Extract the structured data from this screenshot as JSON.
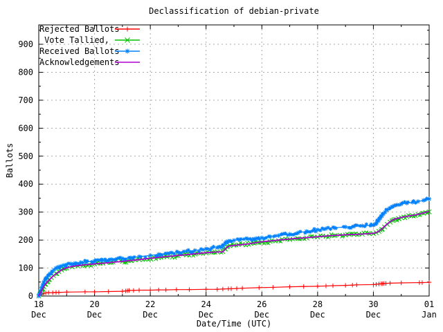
{
  "chart_data": {
    "type": "line",
    "title": "Declassification of debian-private",
    "xlabel": "Date/Time (UTC)",
    "ylabel": "Ballots",
    "grid": true,
    "legend_position": "top-left",
    "axes": {
      "x_days_start": 18,
      "x_days_end": 32,
      "y_min": 0,
      "y_max": 970,
      "y_ticks": [
        0,
        100,
        200,
        300,
        400,
        500,
        600,
        700,
        800,
        900
      ],
      "y_minor_step": 50,
      "x_major_days": [
        18,
        20,
        22,
        24,
        26,
        28,
        30,
        32
      ],
      "x_minor_days": [
        19,
        21,
        23,
        25,
        27,
        29,
        31
      ],
      "x_grid_days": [
        20,
        22,
        24,
        26,
        28,
        30
      ],
      "x_tick_labels": [
        {
          "day": "18",
          "month": "Dec"
        },
        {
          "day": "20",
          "month": "Dec"
        },
        {
          "day": "22",
          "month": "Dec"
        },
        {
          "day": "24",
          "month": "Dec"
        },
        {
          "day": "26",
          "month": "Dec"
        },
        {
          "day": "28",
          "month": "Dec"
        },
        {
          "day": "30",
          "month": "Dec"
        },
        {
          "day": "01",
          "month": "Jan"
        }
      ]
    },
    "colors": {
      "rejected": "#ff0000",
      "tallied": "#00c000",
      "received": "#0080ff",
      "acknowledgements": "#b000d0",
      "grid": "#a8a8a8",
      "frame": "#000000"
    },
    "series": [
      {
        "name": "Rejected Ballots",
        "color": "#ff0000",
        "marker": "plus",
        "band": false,
        "points": [
          [
            18.0,
            0
          ],
          [
            18.04,
            3
          ],
          [
            18.08,
            6
          ],
          [
            18.12,
            8
          ],
          [
            18.18,
            10
          ],
          [
            18.25,
            11
          ],
          [
            18.35,
            12
          ],
          [
            18.5,
            12
          ],
          [
            18.62,
            13
          ],
          [
            18.72,
            13
          ],
          [
            19.0,
            14
          ],
          [
            19.66,
            15
          ],
          [
            20.0,
            15
          ],
          [
            20.5,
            16
          ],
          [
            21.0,
            17
          ],
          [
            21.12,
            18
          ],
          [
            21.18,
            19
          ],
          [
            21.24,
            20
          ],
          [
            21.4,
            20
          ],
          [
            21.6,
            21
          ],
          [
            22.0,
            21
          ],
          [
            22.3,
            22
          ],
          [
            22.56,
            22
          ],
          [
            22.94,
            23
          ],
          [
            23.4,
            23
          ],
          [
            24.0,
            24
          ],
          [
            24.4,
            24
          ],
          [
            24.6,
            25
          ],
          [
            24.8,
            26
          ],
          [
            24.9,
            26
          ],
          [
            25.1,
            27
          ],
          [
            25.3,
            28
          ],
          [
            25.9,
            30
          ],
          [
            26.4,
            31
          ],
          [
            27.0,
            33
          ],
          [
            27.5,
            34
          ],
          [
            28.0,
            35
          ],
          [
            28.3,
            36
          ],
          [
            28.55,
            37
          ],
          [
            29.0,
            38
          ],
          [
            29.25,
            39
          ],
          [
            29.4,
            40
          ],
          [
            30.0,
            41
          ],
          [
            30.1,
            42
          ],
          [
            30.2,
            43
          ],
          [
            30.28,
            44
          ],
          [
            30.33,
            44
          ],
          [
            30.38,
            45
          ],
          [
            30.45,
            45
          ],
          [
            30.6,
            46
          ],
          [
            31.0,
            47
          ],
          [
            31.65,
            48
          ],
          [
            31.75,
            48
          ],
          [
            32.0,
            49
          ]
        ]
      },
      {
        "name": "Vote Tallied,",
        "color": "#00c000",
        "marker": "cross",
        "band": true,
        "points": [
          [
            18.0,
            0
          ],
          [
            18.04,
            6
          ],
          [
            18.08,
            14
          ],
          [
            18.13,
            24
          ],
          [
            18.18,
            33
          ],
          [
            18.24,
            42
          ],
          [
            18.3,
            50
          ],
          [
            18.37,
            58
          ],
          [
            18.45,
            66
          ],
          [
            18.53,
            73
          ],
          [
            18.62,
            80
          ],
          [
            18.72,
            87
          ],
          [
            18.82,
            93
          ],
          [
            18.92,
            97
          ],
          [
            19.0,
            100
          ],
          [
            19.2,
            104
          ],
          [
            19.4,
            107
          ],
          [
            19.6,
            110
          ],
          [
            19.8,
            112
          ],
          [
            20.0,
            114
          ],
          [
            20.3,
            117
          ],
          [
            20.6,
            120
          ],
          [
            21.0,
            124
          ],
          [
            21.3,
            127
          ],
          [
            21.6,
            130
          ],
          [
            22.0,
            134
          ],
          [
            22.3,
            137
          ],
          [
            22.6,
            140
          ],
          [
            23.0,
            144
          ],
          [
            23.3,
            147
          ],
          [
            23.6,
            150
          ],
          [
            24.0,
            154
          ],
          [
            24.2,
            156
          ],
          [
            24.4,
            158
          ],
          [
            24.6,
            159
          ],
          [
            24.68,
            168
          ],
          [
            24.75,
            176
          ],
          [
            24.85,
            180
          ],
          [
            25.0,
            182
          ],
          [
            25.3,
            185
          ],
          [
            25.6,
            188
          ],
          [
            26.0,
            192
          ],
          [
            26.3,
            195
          ],
          [
            26.6,
            198
          ],
          [
            27.0,
            202
          ],
          [
            27.3,
            205
          ],
          [
            27.6,
            208
          ],
          [
            28.0,
            211
          ],
          [
            28.3,
            213
          ],
          [
            28.6,
            216
          ],
          [
            29.0,
            218
          ],
          [
            29.3,
            220
          ],
          [
            29.6,
            221
          ],
          [
            30.0,
            223
          ],
          [
            30.1,
            226
          ],
          [
            30.2,
            231
          ],
          [
            30.3,
            238
          ],
          [
            30.4,
            247
          ],
          [
            30.5,
            256
          ],
          [
            30.6,
            264
          ],
          [
            30.7,
            270
          ],
          [
            30.8,
            274
          ],
          [
            30.9,
            277
          ],
          [
            31.0,
            280
          ],
          [
            31.2,
            284
          ],
          [
            31.4,
            288
          ],
          [
            31.6,
            292
          ],
          [
            31.8,
            296
          ],
          [
            32.0,
            301
          ]
        ]
      },
      {
        "name": "Received Ballots",
        "color": "#0080ff",
        "marker": "star",
        "band": true,
        "points": [
          [
            18.0,
            0
          ],
          [
            18.03,
            8
          ],
          [
            18.06,
            18
          ],
          [
            18.1,
            30
          ],
          [
            18.14,
            40
          ],
          [
            18.18,
            50
          ],
          [
            18.23,
            58
          ],
          [
            18.28,
            65
          ],
          [
            18.33,
            72
          ],
          [
            18.4,
            80
          ],
          [
            18.47,
            87
          ],
          [
            18.55,
            94
          ],
          [
            18.62,
            100
          ],
          [
            18.7,
            104
          ],
          [
            18.8,
            107
          ],
          [
            18.9,
            110
          ],
          [
            19.0,
            112
          ],
          [
            19.15,
            115
          ],
          [
            19.3,
            117
          ],
          [
            19.5,
            120
          ],
          [
            19.7,
            122
          ],
          [
            20.0,
            125
          ],
          [
            20.3,
            128
          ],
          [
            20.6,
            131
          ],
          [
            21.0,
            134
          ],
          [
            21.3,
            137
          ],
          [
            21.6,
            141
          ],
          [
            22.0,
            145
          ],
          [
            22.3,
            149
          ],
          [
            22.6,
            152
          ],
          [
            23.0,
            156
          ],
          [
            23.3,
            160
          ],
          [
            23.6,
            163
          ],
          [
            24.0,
            169
          ],
          [
            24.2,
            171
          ],
          [
            24.4,
            173
          ],
          [
            24.55,
            174
          ],
          [
            24.62,
            180
          ],
          [
            24.68,
            188
          ],
          [
            24.72,
            193
          ],
          [
            24.8,
            196
          ],
          [
            25.0,
            199
          ],
          [
            25.2,
            201
          ],
          [
            25.5,
            204
          ],
          [
            25.8,
            206
          ],
          [
            26.0,
            208
          ],
          [
            26.3,
            212
          ],
          [
            26.6,
            216
          ],
          [
            27.0,
            221
          ],
          [
            27.3,
            226
          ],
          [
            27.6,
            231
          ],
          [
            28.0,
            237
          ],
          [
            28.3,
            241
          ],
          [
            28.6,
            244
          ],
          [
            29.0,
            247
          ],
          [
            29.3,
            249
          ],
          [
            29.6,
            251
          ],
          [
            30.0,
            253
          ],
          [
            30.06,
            257
          ],
          [
            30.12,
            262
          ],
          [
            30.18,
            269
          ],
          [
            30.24,
            277
          ],
          [
            30.3,
            285
          ],
          [
            30.36,
            293
          ],
          [
            30.42,
            300
          ],
          [
            30.5,
            308
          ],
          [
            30.58,
            314
          ],
          [
            30.66,
            319
          ],
          [
            30.75,
            323
          ],
          [
            30.85,
            326
          ],
          [
            31.0,
            329
          ],
          [
            31.2,
            332
          ],
          [
            31.4,
            335
          ],
          [
            31.6,
            338
          ],
          [
            31.8,
            342
          ],
          [
            32.0,
            347
          ]
        ]
      },
      {
        "name": "Acknowledgements",
        "color": "#b000d0",
        "marker": "none",
        "band": false,
        "points": [
          [
            18.0,
            0
          ],
          [
            18.05,
            10
          ],
          [
            18.1,
            20
          ],
          [
            18.16,
            30
          ],
          [
            18.22,
            40
          ],
          [
            18.3,
            50
          ],
          [
            18.4,
            60
          ],
          [
            18.5,
            70
          ],
          [
            18.6,
            78
          ],
          [
            18.7,
            85
          ],
          [
            18.8,
            92
          ],
          [
            18.9,
            97
          ],
          [
            19.0,
            101
          ],
          [
            19.2,
            106
          ],
          [
            19.5,
            110
          ],
          [
            19.8,
            113
          ],
          [
            20.0,
            115
          ],
          [
            20.5,
            119
          ],
          [
            21.0,
            124
          ],
          [
            21.5,
            129
          ],
          [
            22.0,
            135
          ],
          [
            22.5,
            140
          ],
          [
            23.0,
            145
          ],
          [
            23.5,
            150
          ],
          [
            24.0,
            155
          ],
          [
            24.3,
            157
          ],
          [
            24.6,
            158
          ],
          [
            24.7,
            170
          ],
          [
            24.8,
            178
          ],
          [
            25.0,
            181
          ],
          [
            25.5,
            186
          ],
          [
            26.0,
            194
          ],
          [
            26.5,
            199
          ],
          [
            27.0,
            204
          ],
          [
            27.5,
            208
          ],
          [
            28.0,
            212
          ],
          [
            28.5,
            216
          ],
          [
            29.0,
            219
          ],
          [
            29.5,
            221
          ],
          [
            30.0,
            224
          ],
          [
            30.1,
            227
          ],
          [
            30.2,
            232
          ],
          [
            30.3,
            240
          ],
          [
            30.4,
            249
          ],
          [
            30.5,
            258
          ],
          [
            30.6,
            266
          ],
          [
            30.7,
            272
          ],
          [
            30.8,
            276
          ],
          [
            31.0,
            281
          ],
          [
            31.2,
            285
          ],
          [
            31.5,
            290
          ],
          [
            31.8,
            297
          ],
          [
            32.0,
            303
          ]
        ]
      }
    ]
  }
}
